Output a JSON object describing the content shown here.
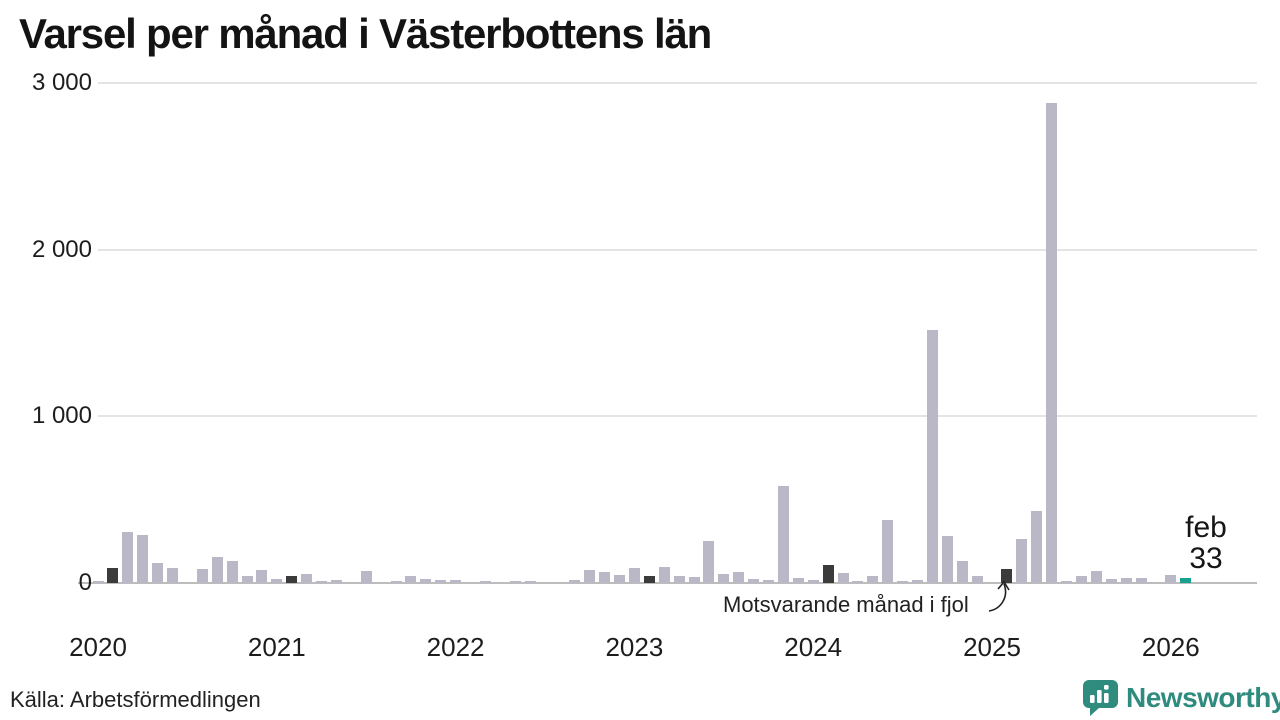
{
  "title": "Varsel per månad i Västerbottens län",
  "source": "Källa: Arbetsförmedlingen",
  "brand": {
    "name": "Newsworthy",
    "icon": "newsworthy-chart-bubble-icon",
    "color": "#2e8b7d"
  },
  "annotation": {
    "text": "Motsvarande månad i fjol"
  },
  "current_label": {
    "month": "feb",
    "value": "33"
  },
  "colors": {
    "bar_default": "#bab8c7",
    "bar_highlight": "#3b3b3b",
    "bar_current": "#1aa08e",
    "grid": "#e4e4e4",
    "baseline": "#bdbdbd",
    "text": "#1d1d1d"
  },
  "chart_data": {
    "type": "bar",
    "title": "Varsel per månad i Västerbottens län",
    "x_start": "2020-01",
    "x_end": "2026-02",
    "ylim": [
      0,
      3000
    ],
    "grid": "horizontal",
    "legend": "none",
    "yticks": [
      {
        "value": 0,
        "label": "0"
      },
      {
        "value": 1000,
        "label": "1 000"
      },
      {
        "value": 2000,
        "label": "2 000"
      },
      {
        "value": 3000,
        "label": "3 000"
      }
    ],
    "year_ticks": [
      {
        "label": "2020",
        "month_index": 0
      },
      {
        "label": "2021",
        "month_index": 12
      },
      {
        "label": "2022",
        "month_index": 24
      },
      {
        "label": "2023",
        "month_index": 36
      },
      {
        "label": "2024",
        "month_index": 48
      },
      {
        "label": "2025",
        "month_index": 60
      },
      {
        "label": "2026",
        "month_index": 72
      }
    ],
    "values": [
      15,
      90,
      305,
      290,
      120,
      88,
      0,
      82,
      155,
      130,
      40,
      80,
      22,
      45,
      55,
      12,
      20,
      0,
      70,
      0,
      12,
      42,
      26,
      16,
      16,
      0,
      12,
      0,
      12,
      12,
      0,
      0,
      16,
      76,
      66,
      46,
      90,
      40,
      98,
      40,
      36,
      252,
      56,
      66,
      22,
      16,
      585,
      32,
      20,
      106,
      60,
      10,
      40,
      376,
      12,
      20,
      1520,
      285,
      130,
      44,
      0,
      85,
      265,
      435,
      2880,
      14,
      40,
      70,
      26,
      32,
      32,
      0,
      50,
      33
    ],
    "highlight_month_indices": [
      1,
      13,
      25,
      37,
      49,
      61
    ],
    "highlight_note": "Motsvarande månad i fjol",
    "current_index": 73,
    "current_value_label": "feb 33"
  }
}
